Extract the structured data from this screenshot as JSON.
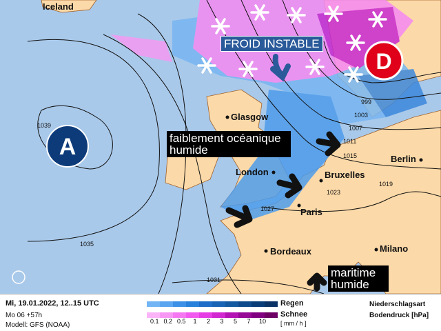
{
  "map": {
    "labels": {
      "iceland": "Iceland",
      "glasgow": "Glasgow",
      "london": "London",
      "bruxelles": "Bruxelles",
      "paris": "Paris",
      "berlin": "Berlin",
      "bordeaux": "Bordeaux",
      "milano": "Milano"
    },
    "pressure_centers": {
      "high": "A",
      "high_value": "1039",
      "low": "D"
    },
    "isobars": [
      "999",
      "1003",
      "1007",
      "1011",
      "1015",
      "1019",
      "1023",
      "1027",
      "1031",
      "1035"
    ],
    "annotations": {
      "froid": "FROID INSTABLE",
      "oceanique": "faiblement océanique humide",
      "maritime": "maritime humide"
    },
    "colors": {
      "sea": "#a9c9ea",
      "land": "#fcd9a8",
      "high": "#0d3b7a",
      "low": "#e0001a",
      "banner": "#2a5a9a"
    }
  },
  "footer": {
    "date": "Mi, 19.01.2022, 12..15 UTC",
    "run": "Mo 06 +57h",
    "model": "Modell: GFS (NOAA)",
    "rain_label": "Regen",
    "snow_label": "Schnee",
    "unit": "[ mm / h ]",
    "scale": [
      "0.1",
      "0.2",
      "0.5",
      "1",
      "2",
      "3",
      "5",
      "7",
      "10"
    ],
    "rain_colors": [
      "#73b4f5",
      "#5aa5f0",
      "#3c91e6",
      "#2882dc",
      "#1e6ec8",
      "#1964b4",
      "#145aa0",
      "#0f4b8c",
      "#0a3c78",
      "#0a3264"
    ],
    "snow_colors": [
      "#fbb4f8",
      "#f896f5",
      "#f578f2",
      "#f25aef",
      "#e63ce6",
      "#d228d2",
      "#b414b4",
      "#960a96",
      "#820082",
      "#6e0064"
    ],
    "type_label": "Niederschlagsart",
    "pressure_label": "Bodendruck [hPa]"
  }
}
